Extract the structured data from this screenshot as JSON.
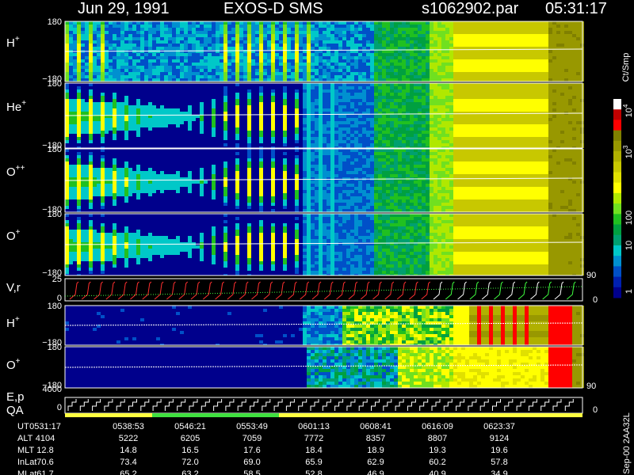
{
  "header": {
    "date": "Jun 29, 1991",
    "instrument": "EXOS-D SMS",
    "file": "s1062902.par",
    "time": "05:31:17"
  },
  "panels": [
    {
      "ion": "H",
      "charge": "+",
      "top": "180",
      "bottom": "−180"
    },
    {
      "ion": "He",
      "charge": "+",
      "top": "180",
      "bottom": "−180"
    },
    {
      "ion": "O",
      "charge": "++",
      "top": "180",
      "bottom": "−180"
    },
    {
      "ion": "O",
      "charge": "+",
      "top": "180",
      "bottom": "−180"
    }
  ],
  "velocity_panel": {
    "label": "V,r",
    "top": "25",
    "bottom": "0",
    "right_top": "90",
    "right_bottom": "0"
  },
  "lower_panels": [
    {
      "ion": "H",
      "charge": "+",
      "top": "180",
      "bottom": "−180"
    },
    {
      "ion": "O",
      "charge": "+",
      "top": "180",
      "bottom": "−180"
    }
  ],
  "lower_right": {
    "top": "90",
    "bottom": "0"
  },
  "energy_panel": {
    "label": "E,p",
    "qa": "QA",
    "top": "4000",
    "bottom": "0",
    "right": "0"
  },
  "colorbar": {
    "unit": "Ct/Smp",
    "labels": [
      {
        "base": "10",
        "exp": "4"
      },
      {
        "base": "10",
        "exp": "3"
      },
      {
        "base": "100"
      },
      {
        "base": "10"
      },
      {
        "base": "1"
      }
    ]
  },
  "side_note": "Sep-00  2AA32L",
  "table": {
    "rows": [
      {
        "label": "UT",
        "values": [
          "0531:17",
          "0538:53",
          "0546:21",
          "0553:49",
          "0601:13",
          "0608:41",
          "0616:09",
          "0623:37"
        ]
      },
      {
        "label": "ALT",
        "values": [
          "4104",
          "5222",
          "6205",
          "7059",
          "7772",
          "8357",
          "8807",
          "9124"
        ]
      },
      {
        "label": "MLT",
        "values": [
          "12.8",
          "14.8",
          "16.5",
          "17.6",
          "18.4",
          "18.9",
          "19.3",
          "19.6"
        ]
      },
      {
        "label": "InLat",
        "values": [
          "70.6",
          "73.4",
          "72.0",
          "69.0",
          "65.9",
          "62.9",
          "60.2",
          "57.8"
        ]
      },
      {
        "label": "MLat",
        "values": [
          "61.7",
          "65.2",
          "63.2",
          "58.5",
          "52.8",
          "46.9",
          "40.9",
          "34.9"
        ]
      }
    ]
  }
}
